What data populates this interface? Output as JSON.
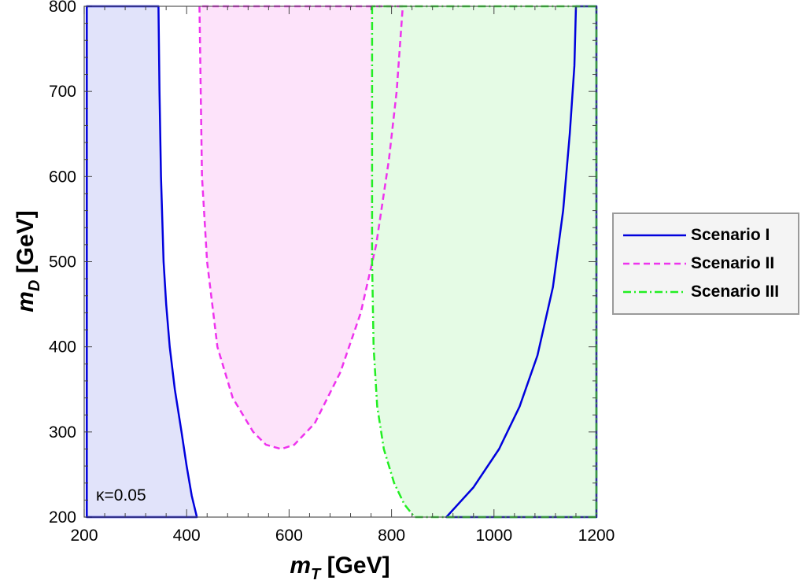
{
  "chart_data": {
    "type": "area",
    "xlabel": "m_T [GeV]",
    "xlabel_var": "m",
    "xlabel_sub": "T",
    "xlabel_unit": " [GeV]",
    "ylabel_var": "m",
    "ylabel_sub": "D",
    "ylabel_unit": " [GeV]",
    "xlim": [
      200,
      1200
    ],
    "ylim": [
      200,
      800
    ],
    "x_ticks": [
      200,
      400,
      600,
      800,
      1000,
      1200
    ],
    "x_tick_labels": [
      "200",
      "400",
      "600",
      "800",
      "1000",
      "1200"
    ],
    "y_ticks": [
      200,
      300,
      400,
      500,
      600,
      700,
      800
    ],
    "y_tick_labels": [
      "200",
      "300",
      "400",
      "500",
      "600",
      "700",
      "800"
    ],
    "grid": false,
    "legend_placement": "right-outside",
    "annotation": "κ=0.05",
    "series": [
      {
        "name": "Scenario I",
        "line_style": "solid",
        "line_color": "#0000dd",
        "fill_color": "#e1e3fa",
        "regions": [
          [
            [
              205,
              800
            ],
            [
              345,
              800
            ],
            [
              347,
              700
            ],
            [
              350,
              600
            ],
            [
              355,
              500
            ],
            [
              360,
              450
            ],
            [
              367,
              400
            ],
            [
              377,
              350
            ],
            [
              390,
              300
            ],
            [
              400,
              260
            ],
            [
              410,
              225
            ],
            [
              420,
              200
            ],
            [
              205,
              200
            ]
          ],
          [
            [
              907,
              200
            ],
            [
              960,
              235
            ],
            [
              1010,
              280
            ],
            [
              1050,
              330
            ],
            [
              1085,
              390
            ],
            [
              1115,
              470
            ],
            [
              1135,
              560
            ],
            [
              1148,
              650
            ],
            [
              1157,
              730
            ],
            [
              1160,
              800
            ],
            [
              1200,
              800
            ],
            [
              1200,
              200
            ]
          ]
        ]
      },
      {
        "name": "Scenario II",
        "line_style": "dashed",
        "line_color": "#ee33ee",
        "fill_color": "#fde3fa",
        "regions": [
          [
            [
              425,
              800
            ],
            [
              430,
              600
            ],
            [
              440,
              500
            ],
            [
              460,
              400
            ],
            [
              490,
              340
            ],
            [
              530,
              300
            ],
            [
              555,
              285
            ],
            [
              585,
              280
            ],
            [
              610,
              285
            ],
            [
              650,
              310
            ],
            [
              700,
              370
            ],
            [
              740,
              440
            ],
            [
              770,
              520
            ],
            [
              795,
              620
            ],
            [
              810,
              700
            ],
            [
              822,
              800
            ]
          ]
        ]
      },
      {
        "name": "Scenario III",
        "line_style": "dashdot",
        "line_color": "#22ee22",
        "fill_color": "#e5fbe5",
        "regions": [
          [
            [
              762,
              800
            ],
            [
              762,
              500
            ],
            [
              765,
              400
            ],
            [
              772,
              330
            ],
            [
              785,
              280
            ],
            [
              805,
              240
            ],
            [
              825,
              215
            ],
            [
              845,
              200
            ],
            [
              1200,
              200
            ],
            [
              1200,
              800
            ]
          ]
        ]
      }
    ]
  }
}
